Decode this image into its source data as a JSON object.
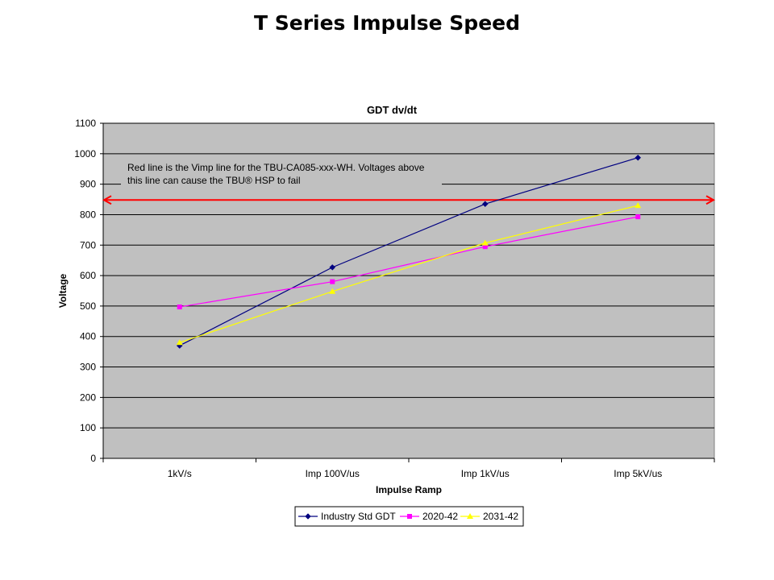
{
  "slide": {
    "title": "T Series Impulse Speed"
  },
  "chart_data": {
    "type": "line",
    "title": "GDT dv/dt",
    "xlabel": "Impulse Ramp",
    "ylabel": "Voltage",
    "categories": [
      "1kV/s",
      "Imp 100V/us",
      "Imp 1kV/us",
      "Imp 5kV/us"
    ],
    "ylim": [
      0,
      1100
    ],
    "yticks": [
      0,
      100,
      200,
      300,
      400,
      500,
      600,
      700,
      800,
      900,
      1000,
      1100
    ],
    "grid": true,
    "legend_position": "bottom",
    "series": [
      {
        "name": "Industry Std GDT",
        "values": [
          370,
          627,
          835,
          987
        ],
        "color": "#000080",
        "marker": "diamond"
      },
      {
        "name": "2020-42",
        "values": [
          497,
          580,
          695,
          793
        ],
        "color": "#ff00ff",
        "marker": "square"
      },
      {
        "name": "2031-42",
        "values": [
          380,
          548,
          707,
          830
        ],
        "color": "#ffff00",
        "marker": "triangle"
      }
    ],
    "reference_line": {
      "value": 848,
      "color": "#ff0000"
    },
    "annotation": {
      "lines": [
        "Red  line is the Vimp line for the TBU-CA085-xxx-WH. Voltages above",
        "this line can cause the TBU® HSP to fail"
      ]
    }
  }
}
